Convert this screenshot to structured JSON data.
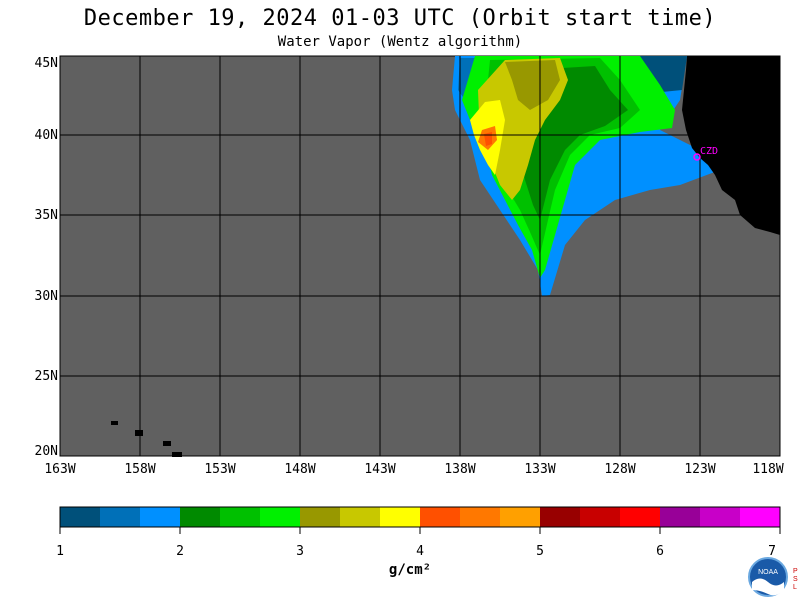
{
  "title": "December 19, 2024  01-03 UTC  (Orbit start time)",
  "subtitle": "Water Vapor (Wentz algorithm)",
  "lat_labels": [
    "45N",
    "40N",
    "35N",
    "30N",
    "25N",
    "20N"
  ],
  "lon_labels": [
    "163W",
    "158W",
    "153W",
    "148W",
    "143W",
    "138W",
    "133W",
    "128W",
    "123W",
    "118W"
  ],
  "station": "CZD",
  "colorbar": {
    "units": "g/cm²",
    "tick_labels": [
      "1",
      "2",
      "3",
      "4",
      "5",
      "6",
      "7"
    ],
    "colors": [
      "#00507a",
      "#0070b8",
      "#0090ff",
      "#008a00",
      "#00c000",
      "#00f000",
      "#989800",
      "#c8c800",
      "#ffff00",
      "#ff5000",
      "#ff7800",
      "#ffa000",
      "#980000",
      "#c80000",
      "#ff0000",
      "#980098",
      "#c800c8",
      "#ff00ff"
    ]
  },
  "colors": {
    "background_gray": "#606060",
    "land": "#000000",
    "station_marker": "#ff00ff"
  },
  "logos": [
    "NOAA",
    "PSL"
  ]
}
